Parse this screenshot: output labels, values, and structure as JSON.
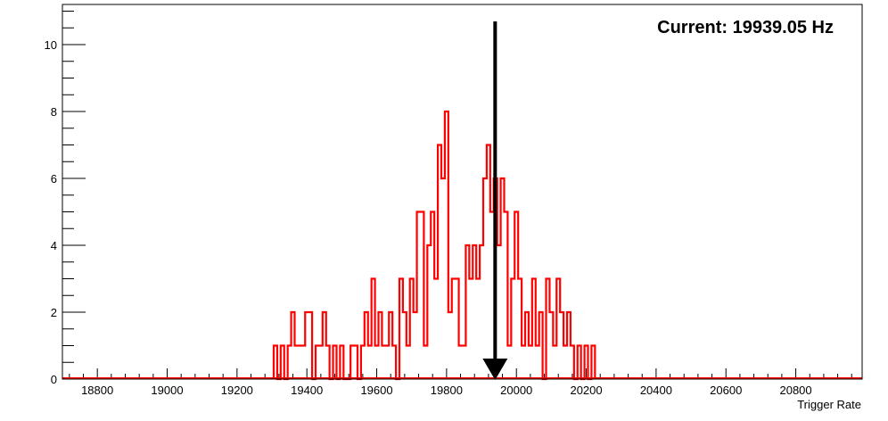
{
  "chart_data": {
    "type": "histogram",
    "xlabel": "Trigger Rate",
    "ylabel": "",
    "xlim": [
      18700,
      20990
    ],
    "ylim": [
      0,
      11.2
    ],
    "x_ticks": [
      18800,
      19000,
      19200,
      19400,
      19600,
      19800,
      20000,
      20200,
      20400,
      20600,
      20800
    ],
    "y_ticks": [
      0,
      2,
      4,
      6,
      8,
      10
    ],
    "bin_width": 10,
    "series": [
      {
        "color": "#ff0000",
        "bins": [
          {
            "x": 19310,
            "y": 1
          },
          {
            "x": 19320,
            "y": 0
          },
          {
            "x": 19330,
            "y": 1
          },
          {
            "x": 19340,
            "y": 0
          },
          {
            "x": 19350,
            "y": 1
          },
          {
            "x": 19360,
            "y": 2
          },
          {
            "x": 19370,
            "y": 1
          },
          {
            "x": 19380,
            "y": 1
          },
          {
            "x": 19390,
            "y": 1
          },
          {
            "x": 19400,
            "y": 2
          },
          {
            "x": 19410,
            "y": 2
          },
          {
            "x": 19420,
            "y": 0
          },
          {
            "x": 19430,
            "y": 1
          },
          {
            "x": 19440,
            "y": 1
          },
          {
            "x": 19450,
            "y": 2
          },
          {
            "x": 19460,
            "y": 1
          },
          {
            "x": 19470,
            "y": 0
          },
          {
            "x": 19480,
            "y": 1
          },
          {
            "x": 19490,
            "y": 0
          },
          {
            "x": 19500,
            "y": 1
          },
          {
            "x": 19510,
            "y": 0
          },
          {
            "x": 19520,
            "y": 0
          },
          {
            "x": 19530,
            "y": 1
          },
          {
            "x": 19540,
            "y": 1
          },
          {
            "x": 19550,
            "y": 0
          },
          {
            "x": 19560,
            "y": 1
          },
          {
            "x": 19570,
            "y": 2
          },
          {
            "x": 19580,
            "y": 1
          },
          {
            "x": 19590,
            "y": 3
          },
          {
            "x": 19600,
            "y": 1
          },
          {
            "x": 19610,
            "y": 2
          },
          {
            "x": 19620,
            "y": 1
          },
          {
            "x": 19630,
            "y": 1
          },
          {
            "x": 19640,
            "y": 2
          },
          {
            "x": 19650,
            "y": 1
          },
          {
            "x": 19660,
            "y": 0
          },
          {
            "x": 19670,
            "y": 3
          },
          {
            "x": 19680,
            "y": 2
          },
          {
            "x": 19690,
            "y": 1
          },
          {
            "x": 19700,
            "y": 3
          },
          {
            "x": 19710,
            "y": 2
          },
          {
            "x": 19720,
            "y": 5
          },
          {
            "x": 19730,
            "y": 5
          },
          {
            "x": 19740,
            "y": 1
          },
          {
            "x": 19750,
            "y": 4
          },
          {
            "x": 19760,
            "y": 5
          },
          {
            "x": 19770,
            "y": 3
          },
          {
            "x": 19780,
            "y": 7
          },
          {
            "x": 19790,
            "y": 6
          },
          {
            "x": 19800,
            "y": 8
          },
          {
            "x": 19810,
            "y": 2
          },
          {
            "x": 19820,
            "y": 3
          },
          {
            "x": 19830,
            "y": 3
          },
          {
            "x": 19840,
            "y": 1
          },
          {
            "x": 19850,
            "y": 1
          },
          {
            "x": 19860,
            "y": 4
          },
          {
            "x": 19870,
            "y": 3
          },
          {
            "x": 19880,
            "y": 4
          },
          {
            "x": 19890,
            "y": 3
          },
          {
            "x": 19900,
            "y": 4
          },
          {
            "x": 19910,
            "y": 6
          },
          {
            "x": 19920,
            "y": 7
          },
          {
            "x": 19930,
            "y": 5
          },
          {
            "x": 19940,
            "y": 6
          },
          {
            "x": 19950,
            "y": 4
          },
          {
            "x": 19960,
            "y": 6
          },
          {
            "x": 19970,
            "y": 5
          },
          {
            "x": 19980,
            "y": 1
          },
          {
            "x": 19990,
            "y": 3
          },
          {
            "x": 20000,
            "y": 5
          },
          {
            "x": 20010,
            "y": 3
          },
          {
            "x": 20020,
            "y": 1
          },
          {
            "x": 20030,
            "y": 2
          },
          {
            "x": 20040,
            "y": 1
          },
          {
            "x": 20050,
            "y": 3
          },
          {
            "x": 20060,
            "y": 1
          },
          {
            "x": 20070,
            "y": 2
          },
          {
            "x": 20080,
            "y": 0
          },
          {
            "x": 20090,
            "y": 3
          },
          {
            "x": 20100,
            "y": 2
          },
          {
            "x": 20110,
            "y": 1
          },
          {
            "x": 20120,
            "y": 3
          },
          {
            "x": 20130,
            "y": 2
          },
          {
            "x": 20140,
            "y": 1
          },
          {
            "x": 20150,
            "y": 2
          },
          {
            "x": 20160,
            "y": 1
          },
          {
            "x": 20170,
            "y": 0
          },
          {
            "x": 20180,
            "y": 1
          },
          {
            "x": 20190,
            "y": 0
          },
          {
            "x": 20200,
            "y": 1
          },
          {
            "x": 20210,
            "y": 0
          },
          {
            "x": 20220,
            "y": 1
          }
        ]
      }
    ],
    "annotations": [
      {
        "text": "Current: 19939.05 Hz",
        "marker": "down-arrow",
        "x": 19939.05
      }
    ]
  },
  "colors": {
    "series": "#ff0000",
    "arrow": "#000000",
    "axes": "#000000"
  }
}
